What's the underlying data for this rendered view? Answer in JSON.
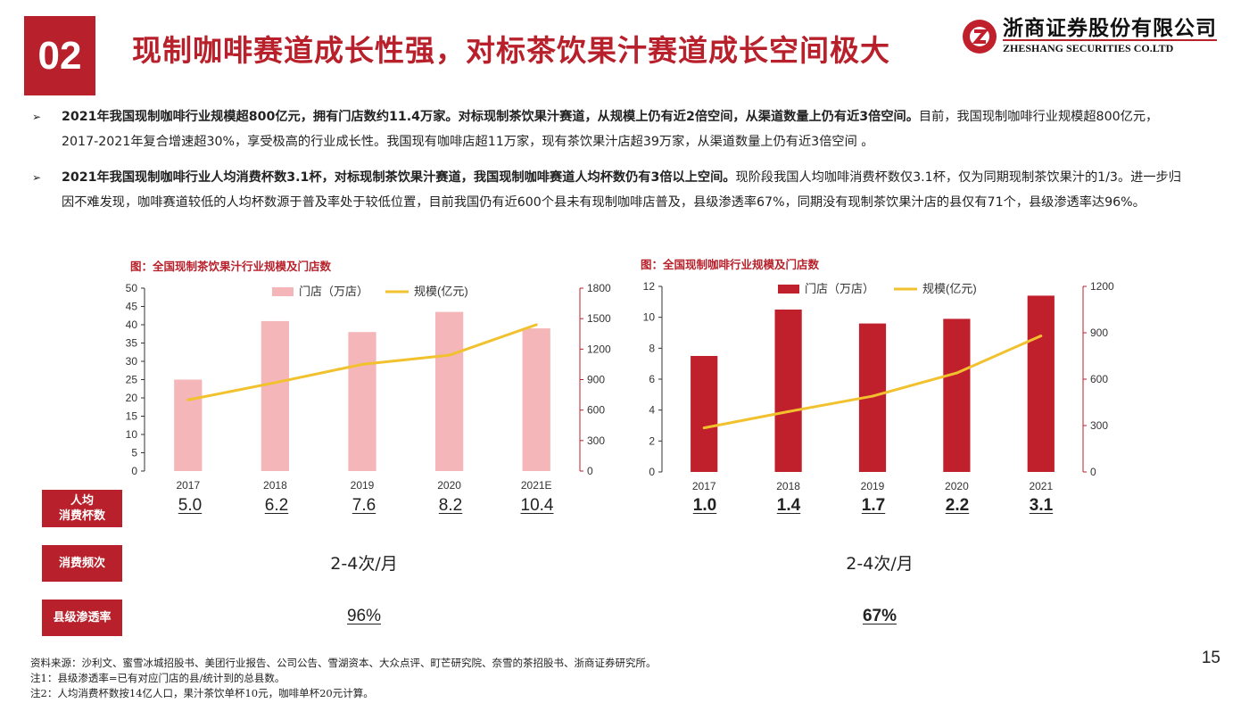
{
  "header": {
    "section_number": "02",
    "title": "现制咖啡赛道成长性强，对标茶饮果汁赛道成长空间极大",
    "logo_cn": "浙商证券股份有限公司",
    "logo_en": "ZHESHANG SECURITIES CO.LTD"
  },
  "bullets": [
    {
      "bold": "2021年我国现制咖啡行业规模超800亿元，拥有门店数约11.4万家。对标现制茶饮果汁赛道，从规模上仍有近2倍空间，从渠道数量上仍有近3倍空间。",
      "text": "目前，我国现制咖啡行业规模超800亿元，2017-2021年复合增速超30%，享受极高的行业成长性。我国现有咖啡店超11万家，现有茶饮果汁店超39万家，从渠道数量上仍有近3倍空间 。"
    },
    {
      "bold": "2021年我国现制咖啡行业人均消费杯数3.1杯，对标现制茶饮果汁赛道，我国现制咖啡赛道人均杯数仍有3倍以上空间。",
      "text": "现阶段我国人均咖啡消费杯数仅3.1杯，仅为同期现制茶饮果汁的1/3。进一步归因不难发现，咖啡赛道较低的人均杯数源于普及率处于较低位置，目前我国仍有近600个县未有现制咖啡店普及，县级渗透率67%，同期没有现制茶饮果汁店的县仅有71个，县级渗透率达96%。"
    }
  ],
  "chart_data": [
    {
      "type": "bar",
      "title": "图：全国现制茶饮果汁行业规模及门店数",
      "categories": [
        "2017",
        "2018",
        "2019",
        "2020",
        "2021E"
      ],
      "series": [
        {
          "name": "门店（万店）",
          "type": "bar",
          "axis": "left",
          "color": "#f4b6b8",
          "values": [
            25,
            41,
            38,
            43.5,
            39
          ]
        },
        {
          "name": "规模(亿元)",
          "type": "line",
          "axis": "right",
          "color": "#f2c12e",
          "values": [
            700,
            870,
            1050,
            1140,
            1440
          ]
        }
      ],
      "ylim_left": [
        0,
        50
      ],
      "yticks_left": [
        0,
        5,
        10,
        15,
        20,
        25,
        30,
        35,
        40,
        45,
        50
      ],
      "ylim_right": [
        0,
        1800
      ],
      "yticks_right": [
        0,
        300,
        600,
        900,
        1200,
        1500,
        1800
      ],
      "legend_position": "top",
      "grid": false
    },
    {
      "type": "bar",
      "title": "图：全国现制咖啡行业规模及门店数",
      "categories": [
        "2017",
        "2018",
        "2019",
        "2020",
        "2021"
      ],
      "series": [
        {
          "name": "门店（万店）",
          "type": "bar",
          "axis": "left",
          "color": "#c0202b",
          "values": [
            7.5,
            10.5,
            9.6,
            9.9,
            11.4
          ]
        },
        {
          "name": "规模(亿元)",
          "type": "line",
          "axis": "right",
          "color": "#f2c12e",
          "values": [
            285,
            390,
            490,
            640,
            880
          ]
        }
      ],
      "ylim_left": [
        0,
        12
      ],
      "yticks_left": [
        0,
        2,
        4,
        6,
        8,
        10,
        12
      ],
      "ylim_right": [
        0,
        1200
      ],
      "yticks_right": [
        0,
        300,
        600,
        900,
        1200
      ],
      "legend_position": "top",
      "grid": false
    }
  ],
  "metrics": {
    "per_capita_label": "人均\n消费杯数",
    "frequency_label": "消费频次",
    "penetration_label": "县级渗透率",
    "tea_cups": [
      "5.0",
      "6.2",
      "7.6",
      "8.2",
      "10.4"
    ],
    "coffee_cups": [
      "1.0",
      "1.4",
      "1.7",
      "2.2",
      "3.1"
    ],
    "tea_frequency": "2-4次/月",
    "coffee_frequency": "2-4次/月",
    "tea_penetration": "96%",
    "coffee_penetration": "67%"
  },
  "footer": {
    "source": "资料来源：沙利文、蜜雪冰城招股书、美团行业报告、公司公告、雪湖资本、大众点评、町芒研究院、奈雪的茶招股书、浙商证券研究所。",
    "note1": "注1：县级渗透率=已有对应门店的县/统计到的总县数。",
    "note2": "注2：人均消费杯数按14亿人口，果汁茶饮单杯10元，咖啡单杯20元计算。",
    "page": "15"
  }
}
